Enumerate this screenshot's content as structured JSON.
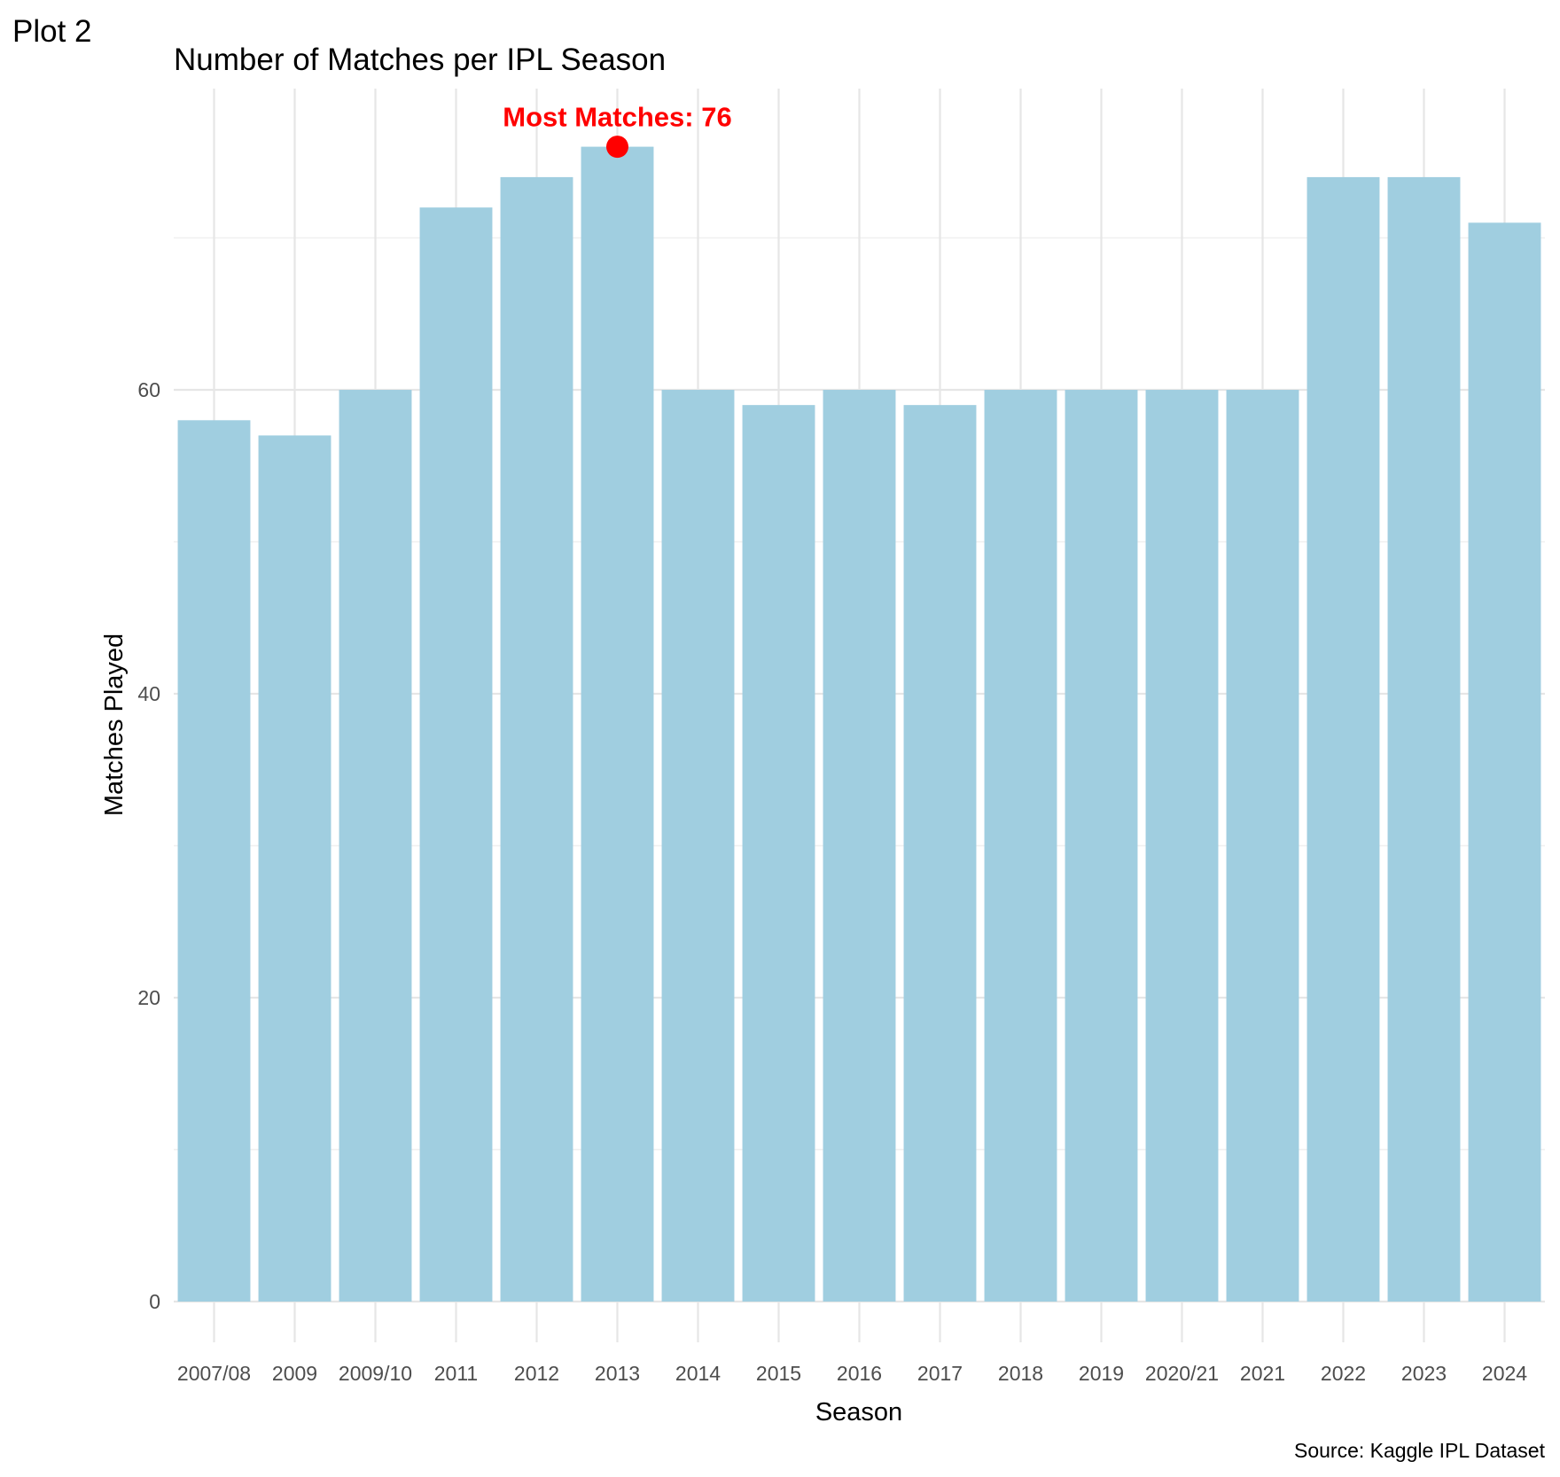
{
  "plot_tag": "Plot 2",
  "caption": "Source: Kaggle IPL Dataset",
  "colors": {
    "bar": "#a0cee0",
    "highlight": "#ff0000",
    "grid_major": "#e6e6e6",
    "grid_minor": "#f0f0f0",
    "tick_text": "#4d4d4d"
  },
  "chart_data": {
    "type": "bar",
    "title": "Number of Matches per IPL Season",
    "xlabel": "Season",
    "ylabel": "Matches Played",
    "categories": [
      "2007/08",
      "2009",
      "2009/10",
      "2011",
      "2012",
      "2013",
      "2014",
      "2015",
      "2016",
      "2017",
      "2018",
      "2019",
      "2020/21",
      "2021",
      "2022",
      "2023",
      "2024"
    ],
    "values": [
      58,
      57,
      60,
      72,
      74,
      76,
      60,
      59,
      60,
      59,
      60,
      60,
      60,
      60,
      74,
      74,
      71
    ],
    "ylim": [
      0,
      80
    ],
    "yticks": [
      0,
      20,
      40,
      60
    ],
    "grid": true,
    "legend": "none",
    "annotation": {
      "text": "Most Matches: 76",
      "category": "2013",
      "value": 76
    }
  }
}
